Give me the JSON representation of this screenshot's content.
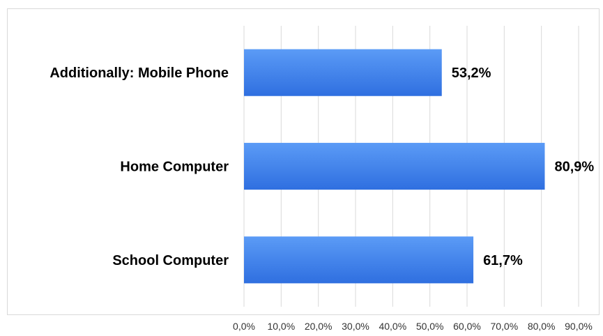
{
  "chart_data": {
    "type": "bar",
    "orientation": "horizontal",
    "categories": [
      "Additionally: Mobile Phone",
      "Home Computer",
      "School Computer"
    ],
    "values": [
      53.2,
      80.9,
      61.7
    ],
    "value_labels": [
      "53,2%",
      "80,9%",
      "61,7%"
    ],
    "xlim": [
      0,
      90
    ],
    "x_ticks": [
      0,
      10,
      20,
      30,
      40,
      50,
      60,
      70,
      80,
      90
    ],
    "x_tick_labels": [
      "0,0%",
      "10,0%",
      "20,0%",
      "30,0%",
      "40,0%",
      "50,0%",
      "60,0%",
      "70,0%",
      "80,0%",
      "90,0%"
    ],
    "grid": true,
    "legend": "none",
    "title": "",
    "xlabel": "",
    "ylabel": "",
    "colors": {
      "bar_top": "#5b9bf6",
      "bar_bottom": "#2f6fe0",
      "grid": "#d9d9d9"
    }
  }
}
